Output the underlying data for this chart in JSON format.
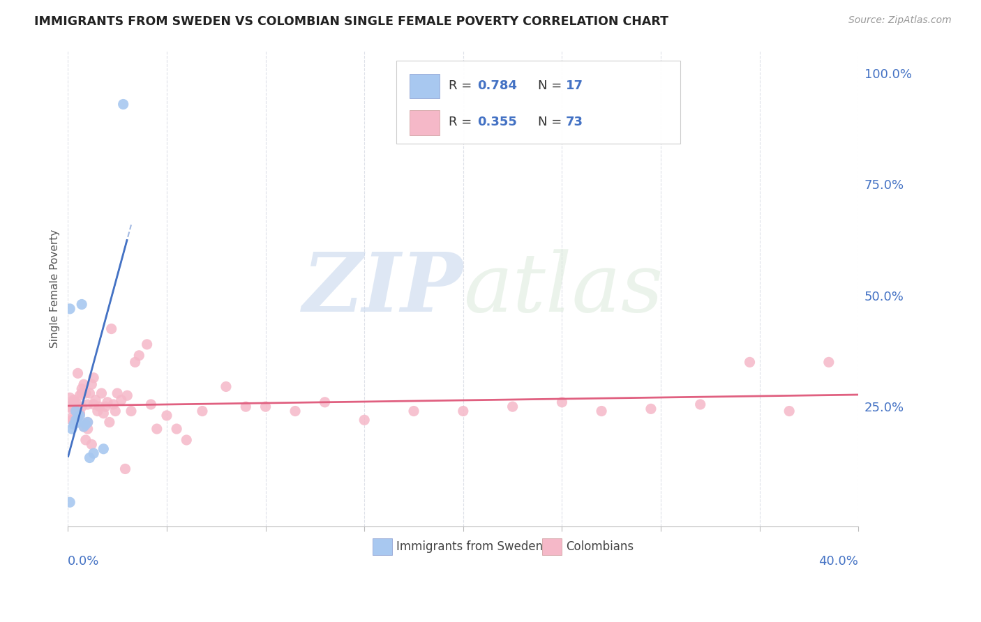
{
  "title": "IMMIGRANTS FROM SWEDEN VS COLOMBIAN SINGLE FEMALE POVERTY CORRELATION CHART",
  "source": "Source: ZipAtlas.com",
  "ylabel": "Single Female Poverty",
  "xlim": [
    0.0,
    0.4
  ],
  "ylim": [
    -0.02,
    1.05
  ],
  "ytick_vals": [
    0.25,
    0.5,
    0.75,
    1.0
  ],
  "ytick_labels": [
    "25.0%",
    "50.0%",
    "75.0%",
    "100.0%"
  ],
  "sweden_color": "#a8c8f0",
  "colombia_color": "#f5b8c8",
  "sweden_line_color": "#4472c4",
  "colombia_line_color": "#e06080",
  "watermark_zip": "ZIP",
  "watermark_atlas": "atlas",
  "background_color": "#ffffff",
  "grid_color": "#dde0e8",
  "sweden_pts_x": [
    0.001,
    0.002,
    0.003,
    0.004,
    0.004,
    0.005,
    0.005,
    0.006,
    0.007,
    0.008,
    0.009,
    0.01,
    0.011,
    0.013,
    0.018,
    0.028,
    0.001
  ],
  "sweden_pts_y": [
    0.035,
    0.2,
    0.21,
    0.22,
    0.24,
    0.215,
    0.225,
    0.23,
    0.48,
    0.205,
    0.21,
    0.215,
    0.135,
    0.145,
    0.155,
    0.93,
    0.47
  ],
  "colombia_pts_x": [
    0.001,
    0.002,
    0.002,
    0.003,
    0.003,
    0.004,
    0.005,
    0.005,
    0.006,
    0.006,
    0.007,
    0.007,
    0.008,
    0.009,
    0.01,
    0.01,
    0.011,
    0.012,
    0.013,
    0.013,
    0.014,
    0.015,
    0.016,
    0.017,
    0.018,
    0.019,
    0.02,
    0.021,
    0.022,
    0.023,
    0.024,
    0.025,
    0.027,
    0.029,
    0.03,
    0.032,
    0.034,
    0.036,
    0.04,
    0.042,
    0.045,
    0.05,
    0.055,
    0.06,
    0.068,
    0.08,
    0.09,
    0.1,
    0.115,
    0.13,
    0.15,
    0.175,
    0.2,
    0.225,
    0.25,
    0.27,
    0.295,
    0.32,
    0.345,
    0.365,
    0.385,
    0.001,
    0.002,
    0.003,
    0.004,
    0.004,
    0.005,
    0.006,
    0.007,
    0.008,
    0.009,
    0.01,
    0.012
  ],
  "colombia_pts_y": [
    0.27,
    0.245,
    0.225,
    0.26,
    0.22,
    0.26,
    0.325,
    0.225,
    0.275,
    0.235,
    0.29,
    0.25,
    0.3,
    0.28,
    0.255,
    0.215,
    0.28,
    0.3,
    0.315,
    0.255,
    0.265,
    0.24,
    0.25,
    0.28,
    0.235,
    0.25,
    0.26,
    0.215,
    0.425,
    0.255,
    0.24,
    0.28,
    0.265,
    0.11,
    0.275,
    0.24,
    0.35,
    0.365,
    0.39,
    0.255,
    0.2,
    0.23,
    0.2,
    0.175,
    0.24,
    0.295,
    0.25,
    0.25,
    0.24,
    0.26,
    0.22,
    0.24,
    0.24,
    0.25,
    0.26,
    0.24,
    0.245,
    0.255,
    0.35,
    0.24,
    0.35,
    0.25,
    0.22,
    0.265,
    0.25,
    0.225,
    0.24,
    0.235,
    0.28,
    0.205,
    0.175,
    0.2,
    0.165
  ]
}
